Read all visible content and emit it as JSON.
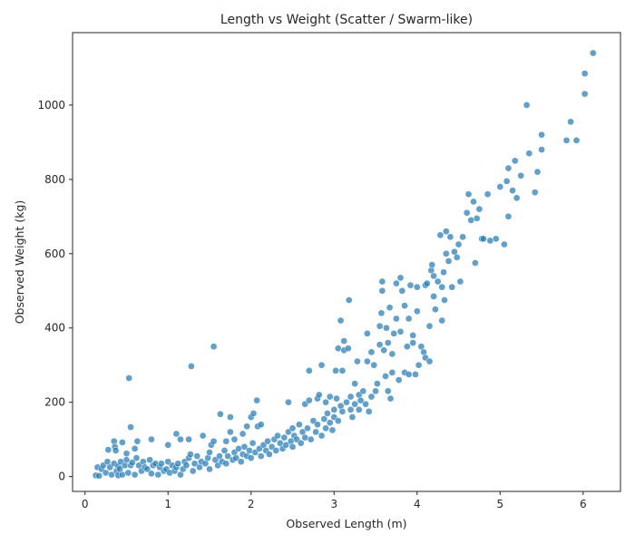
{
  "chart_data": {
    "type": "scatter",
    "title": "Length vs Weight (Scatter / Swarm-like)",
    "xlabel": "Observed Length (m)",
    "ylabel": "Observed Weight (kg)",
    "xlim": [
      -0.15,
      6.45
    ],
    "ylim": [
      -40,
      1195
    ],
    "xticks": [
      0,
      1,
      2,
      3,
      4,
      5,
      6
    ],
    "yticks": [
      0,
      200,
      400,
      600,
      800,
      1000
    ],
    "point_color": "#1f77b4",
    "point_alpha": 0.7,
    "grid": false,
    "legend": "none",
    "points": [
      [
        0.13,
        3
      ],
      [
        0.15,
        25
      ],
      [
        0.17,
        2
      ],
      [
        0.2,
        20
      ],
      [
        0.22,
        30
      ],
      [
        0.25,
        10
      ],
      [
        0.27,
        40
      ],
      [
        0.28,
        72
      ],
      [
        0.3,
        25
      ],
      [
        0.32,
        5
      ],
      [
        0.35,
        95
      ],
      [
        0.35,
        35
      ],
      [
        0.36,
        80
      ],
      [
        0.37,
        70
      ],
      [
        0.38,
        15
      ],
      [
        0.4,
        3
      ],
      [
        0.4,
        28
      ],
      [
        0.42,
        20
      ],
      [
        0.43,
        40
      ],
      [
        0.45,
        92
      ],
      [
        0.45,
        5
      ],
      [
        0.48,
        30
      ],
      [
        0.5,
        62
      ],
      [
        0.5,
        45
      ],
      [
        0.52,
        10
      ],
      [
        0.53,
        265
      ],
      [
        0.55,
        133
      ],
      [
        0.55,
        30
      ],
      [
        0.57,
        38
      ],
      [
        0.6,
        75
      ],
      [
        0.6,
        5
      ],
      [
        0.62,
        50
      ],
      [
        0.63,
        95
      ],
      [
        0.65,
        30
      ],
      [
        0.68,
        15
      ],
      [
        0.7,
        40
      ],
      [
        0.72,
        25
      ],
      [
        0.75,
        20
      ],
      [
        0.78,
        45
      ],
      [
        0.8,
        100
      ],
      [
        0.8,
        8
      ],
      [
        0.82,
        30
      ],
      [
        0.85,
        35
      ],
      [
        0.88,
        5
      ],
      [
        0.9,
        25
      ],
      [
        0.92,
        35
      ],
      [
        0.95,
        15
      ],
      [
        0.98,
        20
      ],
      [
        1.0,
        85
      ],
      [
        1.0,
        40
      ],
      [
        1.02,
        10
      ],
      [
        1.05,
        30
      ],
      [
        1.08,
        15
      ],
      [
        1.1,
        115
      ],
      [
        1.1,
        25
      ],
      [
        1.12,
        35
      ],
      [
        1.15,
        100
      ],
      [
        1.15,
        5
      ],
      [
        1.18,
        20
      ],
      [
        1.2,
        40
      ],
      [
        1.22,
        30
      ],
      [
        1.25,
        100
      ],
      [
        1.25,
        50
      ],
      [
        1.27,
        60
      ],
      [
        1.28,
        297
      ],
      [
        1.3,
        15
      ],
      [
        1.32,
        35
      ],
      [
        1.35,
        55
      ],
      [
        1.38,
        25
      ],
      [
        1.4,
        40
      ],
      [
        1.42,
        110
      ],
      [
        1.45,
        35
      ],
      [
        1.48,
        50
      ],
      [
        1.5,
        20
      ],
      [
        1.5,
        65
      ],
      [
        1.52,
        85
      ],
      [
        1.55,
        350
      ],
      [
        1.55,
        95
      ],
      [
        1.57,
        45
      ],
      [
        1.6,
        30
      ],
      [
        1.62,
        55
      ],
      [
        1.63,
        168
      ],
      [
        1.65,
        40
      ],
      [
        1.68,
        70
      ],
      [
        1.7,
        95
      ],
      [
        1.7,
        35
      ],
      [
        1.72,
        55
      ],
      [
        1.75,
        120
      ],
      [
        1.75,
        160
      ],
      [
        1.78,
        45
      ],
      [
        1.8,
        65
      ],
      [
        1.8,
        100
      ],
      [
        1.82,
        50
      ],
      [
        1.85,
        75
      ],
      [
        1.88,
        40
      ],
      [
        1.9,
        60
      ],
      [
        1.9,
        115
      ],
      [
        1.92,
        80
      ],
      [
        1.95,
        55
      ],
      [
        1.95,
        135
      ],
      [
        1.98,
        70
      ],
      [
        2.0,
        160
      ],
      [
        2.0,
        50
      ],
      [
        2.02,
        90
      ],
      [
        2.03,
        170
      ],
      [
        2.05,
        65
      ],
      [
        2.07,
        205
      ],
      [
        2.08,
        135
      ],
      [
        2.1,
        75
      ],
      [
        2.12,
        55
      ],
      [
        2.12,
        140
      ],
      [
        2.15,
        85
      ],
      [
        2.18,
        70
      ],
      [
        2.2,
        95
      ],
      [
        2.22,
        60
      ],
      [
        2.25,
        80
      ],
      [
        2.28,
        100
      ],
      [
        2.3,
        70
      ],
      [
        2.32,
        110
      ],
      [
        2.35,
        90
      ],
      [
        2.38,
        75
      ],
      [
        2.4,
        105
      ],
      [
        2.42,
        85
      ],
      [
        2.45,
        120
      ],
      [
        2.45,
        200
      ],
      [
        2.48,
        95
      ],
      [
        2.5,
        130
      ],
      [
        2.5,
        80
      ],
      [
        2.52,
        110
      ],
      [
        2.55,
        100
      ],
      [
        2.58,
        140
      ],
      [
        2.6,
        90
      ],
      [
        2.62,
        120
      ],
      [
        2.65,
        195
      ],
      [
        2.65,
        105
      ],
      [
        2.68,
        130
      ],
      [
        2.7,
        205
      ],
      [
        2.7,
        285
      ],
      [
        2.72,
        100
      ],
      [
        2.75,
        150
      ],
      [
        2.78,
        120
      ],
      [
        2.8,
        140
      ],
      [
        2.8,
        210
      ],
      [
        2.82,
        220
      ],
      [
        2.85,
        110
      ],
      [
        2.85,
        300
      ],
      [
        2.88,
        155
      ],
      [
        2.9,
        130
      ],
      [
        2.9,
        200
      ],
      [
        2.92,
        170
      ],
      [
        2.95,
        145
      ],
      [
        2.95,
        215
      ],
      [
        2.98,
        125
      ],
      [
        3.0,
        180
      ],
      [
        3.0,
        160
      ],
      [
        3.02,
        285
      ],
      [
        3.03,
        210
      ],
      [
        3.05,
        345
      ],
      [
        3.05,
        150
      ],
      [
        3.08,
        420
      ],
      [
        3.08,
        190
      ],
      [
        3.1,
        175
      ],
      [
        3.1,
        285
      ],
      [
        3.12,
        340
      ],
      [
        3.12,
        365
      ],
      [
        3.15,
        200
      ],
      [
        3.17,
        345
      ],
      [
        3.18,
        475
      ],
      [
        3.2,
        180
      ],
      [
        3.2,
        215
      ],
      [
        3.22,
        160
      ],
      [
        3.25,
        195
      ],
      [
        3.25,
        250
      ],
      [
        3.28,
        310
      ],
      [
        3.3,
        180
      ],
      [
        3.3,
        220
      ],
      [
        3.32,
        205
      ],
      [
        3.35,
        230
      ],
      [
        3.38,
        195
      ],
      [
        3.4,
        310
      ],
      [
        3.4,
        385
      ],
      [
        3.42,
        175
      ],
      [
        3.45,
        335
      ],
      [
        3.45,
        215
      ],
      [
        3.48,
        300
      ],
      [
        3.5,
        230
      ],
      [
        3.52,
        250
      ],
      [
        3.55,
        405
      ],
      [
        3.55,
        355
      ],
      [
        3.57,
        440
      ],
      [
        3.58,
        500
      ],
      [
        3.58,
        525
      ],
      [
        3.6,
        340
      ],
      [
        3.62,
        270
      ],
      [
        3.63,
        400
      ],
      [
        3.65,
        230
      ],
      [
        3.65,
        360
      ],
      [
        3.67,
        455
      ],
      [
        3.68,
        210
      ],
      [
        3.7,
        280
      ],
      [
        3.7,
        330
      ],
      [
        3.72,
        385
      ],
      [
        3.75,
        425
      ],
      [
        3.75,
        520
      ],
      [
        3.78,
        260
      ],
      [
        3.8,
        535
      ],
      [
        3.8,
        390
      ],
      [
        3.82,
        500
      ],
      [
        3.85,
        280
      ],
      [
        3.85,
        460
      ],
      [
        3.88,
        350
      ],
      [
        3.9,
        425
      ],
      [
        3.9,
        275
      ],
      [
        3.92,
        515
      ],
      [
        3.95,
        380
      ],
      [
        3.95,
        360
      ],
      [
        3.98,
        275
      ],
      [
        4.0,
        445
      ],
      [
        4.0,
        510
      ],
      [
        4.02,
        300
      ],
      [
        4.05,
        350
      ],
      [
        4.08,
        335
      ],
      [
        4.1,
        320
      ],
      [
        4.1,
        515
      ],
      [
        4.12,
        520
      ],
      [
        4.15,
        405
      ],
      [
        4.15,
        310
      ],
      [
        4.17,
        555
      ],
      [
        4.18,
        570
      ],
      [
        4.2,
        485
      ],
      [
        4.2,
        540
      ],
      [
        4.22,
        450
      ],
      [
        4.25,
        525
      ],
      [
        4.28,
        650
      ],
      [
        4.3,
        510
      ],
      [
        4.3,
        420
      ],
      [
        4.32,
        550
      ],
      [
        4.33,
        475
      ],
      [
        4.35,
        600
      ],
      [
        4.35,
        660
      ],
      [
        4.38,
        580
      ],
      [
        4.4,
        645
      ],
      [
        4.42,
        510
      ],
      [
        4.45,
        605
      ],
      [
        4.48,
        590
      ],
      [
        4.5,
        625
      ],
      [
        4.52,
        525
      ],
      [
        4.55,
        645
      ],
      [
        4.6,
        710
      ],
      [
        4.62,
        760
      ],
      [
        4.65,
        690
      ],
      [
        4.68,
        740
      ],
      [
        4.7,
        575
      ],
      [
        4.72,
        695
      ],
      [
        4.75,
        720
      ],
      [
        4.78,
        640
      ],
      [
        4.8,
        640
      ],
      [
        4.85,
        760
      ],
      [
        4.88,
        635
      ],
      [
        4.95,
        640
      ],
      [
        5.0,
        780
      ],
      [
        5.05,
        625
      ],
      [
        5.08,
        795
      ],
      [
        5.1,
        700
      ],
      [
        5.1,
        830
      ],
      [
        5.15,
        770
      ],
      [
        5.18,
        850
      ],
      [
        5.2,
        750
      ],
      [
        5.25,
        810
      ],
      [
        5.32,
        1000
      ],
      [
        5.35,
        870
      ],
      [
        5.42,
        765
      ],
      [
        5.45,
        820
      ],
      [
        5.5,
        880
      ],
      [
        5.5,
        920
      ],
      [
        5.8,
        905
      ],
      [
        5.85,
        955
      ],
      [
        5.92,
        905
      ],
      [
        6.02,
        1030
      ],
      [
        6.02,
        1085
      ],
      [
        6.12,
        1140
      ]
    ]
  }
}
